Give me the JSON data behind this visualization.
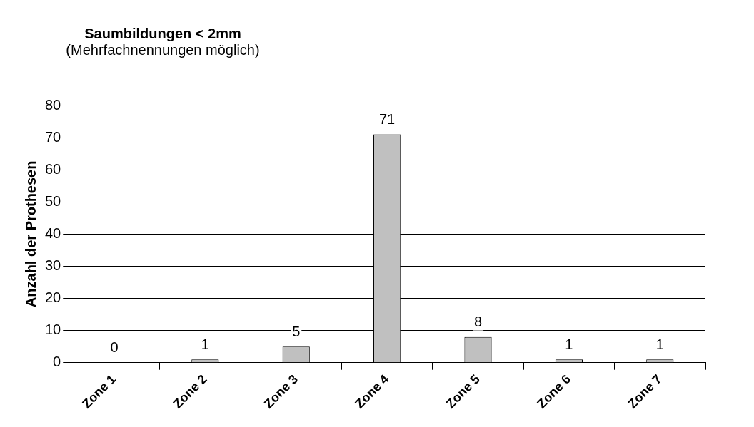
{
  "chart_data": {
    "type": "bar",
    "title": "Saumbildungen < 2mm",
    "subtitle": "(Mehrfachnennungen möglich)",
    "ylabel": "Anzahl der Prothesen",
    "categories": [
      "Zone 1",
      "Zone 2",
      "Zone 3",
      "Zone 4",
      "Zone 5",
      "Zone 6",
      "Zone 7"
    ],
    "values": [
      0,
      1,
      5,
      71,
      8,
      1,
      1
    ],
    "color": "#c0c0c0",
    "ylim": [
      0,
      80
    ],
    "yticks": [
      0,
      10,
      20,
      30,
      40,
      50,
      60,
      70,
      80
    ],
    "grid": "y",
    "data_labels": true
  }
}
